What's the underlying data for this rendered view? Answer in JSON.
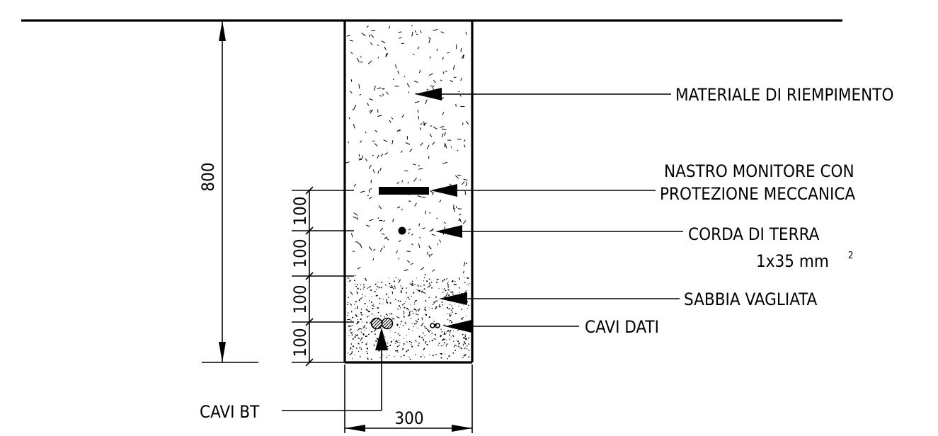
{
  "labels": {
    "filling_material": "MATERIALE DI RIEMPIMENTO",
    "warning_tape_line1": "NASTRO MONITORE CON",
    "warning_tape_line2": "PROTEZIONE MECCANICA",
    "earth_wire": "CORDA DI TERRA",
    "earth_wire_size": "1x35  mm",
    "earth_wire_size_sup": "2",
    "sifted_sand": "SABBIA VAGLIATA",
    "data_cables": "CAVI DATI",
    "lv_cables": "CAVI BT"
  },
  "dimensions": {
    "depth": "800",
    "width": "300",
    "layers": [
      "100",
      "100",
      "100",
      "100"
    ]
  }
}
